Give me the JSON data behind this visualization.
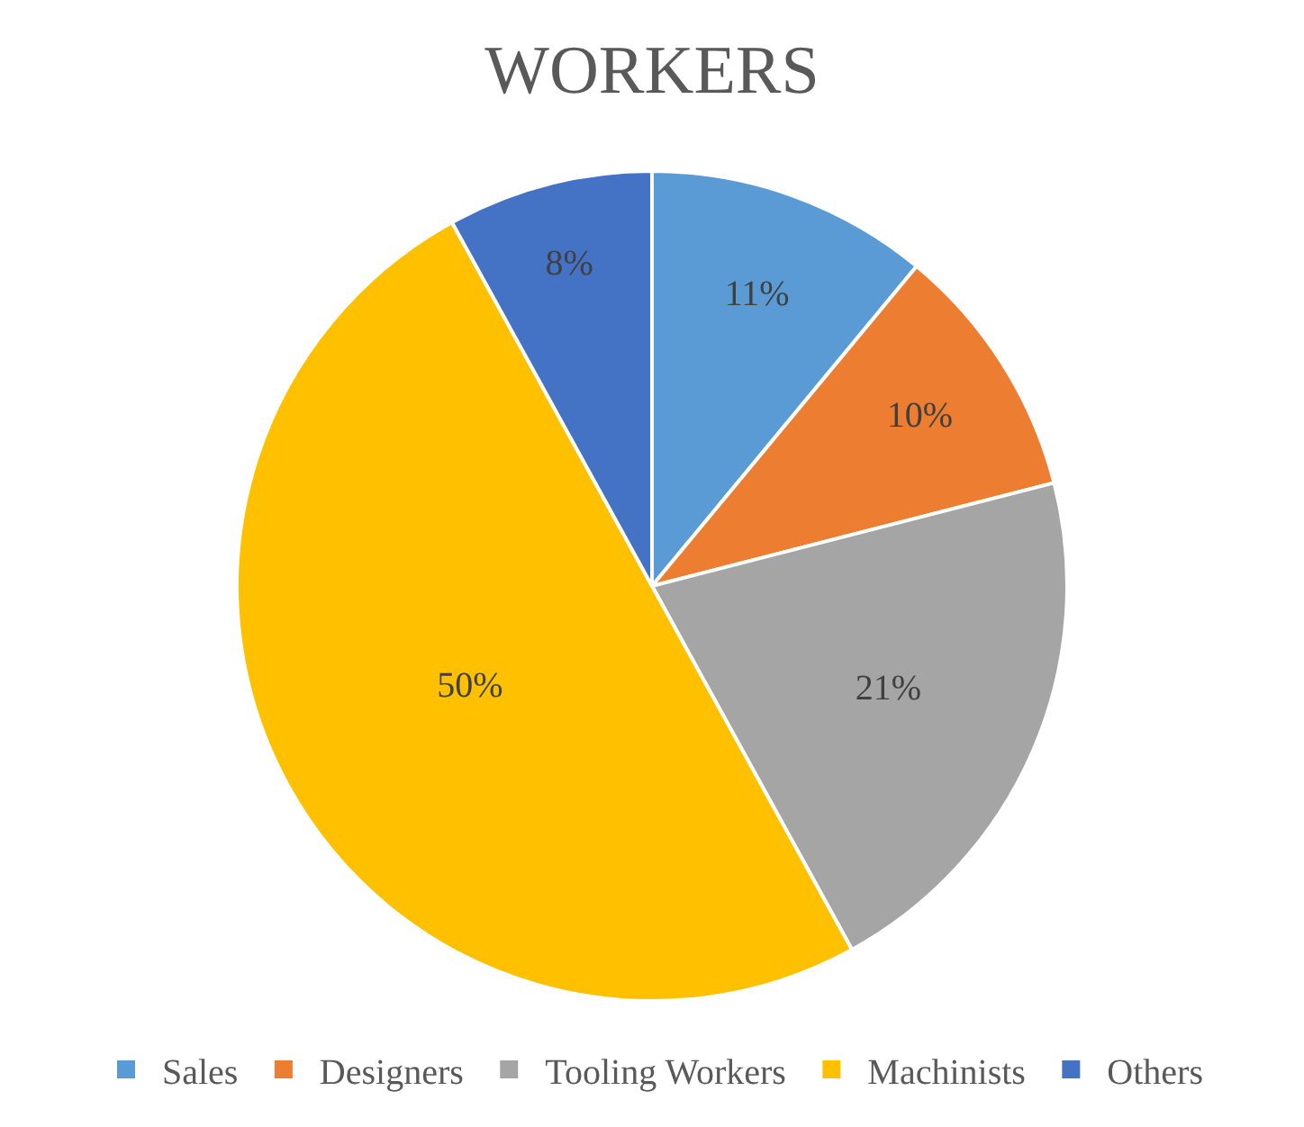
{
  "chart_data": {
    "type": "pie",
    "title": "WORKERS",
    "categories": [
      "Sales",
      "Designers",
      "Tooling Workers",
      "Machinists",
      "Others"
    ],
    "values": [
      11,
      10,
      21,
      50,
      8
    ],
    "colors": [
      "#5b9bd5",
      "#ed7d31",
      "#a5a5a5",
      "#ffc000",
      "#4472c4"
    ],
    "value_labels": [
      "11%",
      "10%",
      "21%",
      "50%",
      "8%"
    ],
    "legend": "bottom"
  }
}
